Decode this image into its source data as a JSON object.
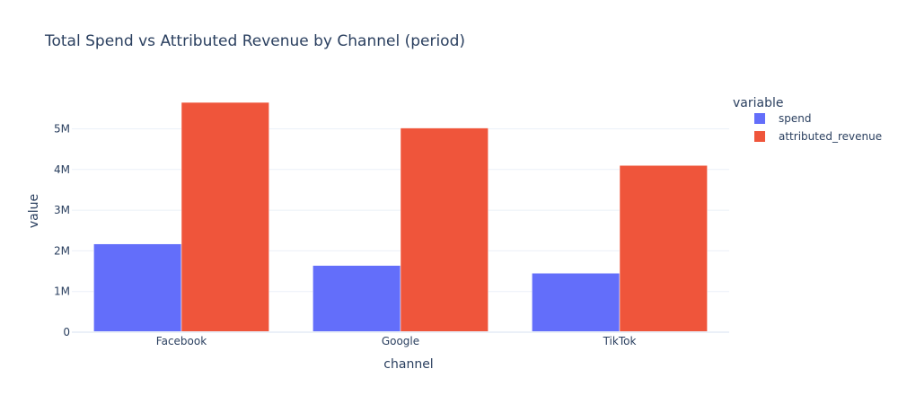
{
  "chart_data": {
    "type": "bar",
    "title": "Total Spend vs Attributed Revenue by Channel (period)",
    "xlabel": "channel",
    "ylabel": "value",
    "categories": [
      "Facebook",
      "Google",
      "TikTok"
    ],
    "series": [
      {
        "name": "spend",
        "values": [
          2170000,
          1640000,
          1450000
        ],
        "color": "#636efa"
      },
      {
        "name": "attributed_revenue",
        "values": [
          5650000,
          5020000,
          4100000
        ],
        "color": "#ef553b"
      }
    ],
    "ylim": [
      0,
      5960000
    ],
    "y_ticks": [
      0,
      1000000,
      2000000,
      3000000,
      4000000,
      5000000
    ],
    "y_tick_labels": [
      "0",
      "1M",
      "2M",
      "3M",
      "4M",
      "5M"
    ],
    "grid": true,
    "legend": {
      "title": "variable",
      "placement": "right"
    }
  }
}
